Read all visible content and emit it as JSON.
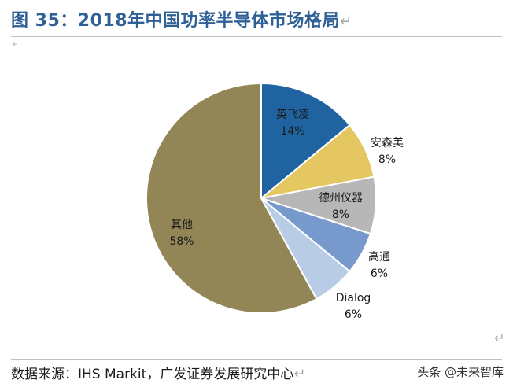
{
  "figure": {
    "title": "图 35：2018年中国功率半导体市场格局",
    "return_symbol": "↵",
    "source": "数据来源：IHS Markit，广发证券发展研究中心",
    "watermark": "头条 @未来智库"
  },
  "chart_data": {
    "type": "pie",
    "title": "",
    "start_angle_deg": 0,
    "direction": "clockwise",
    "slices": [
      {
        "name": "英飞凌",
        "value": 14,
        "label": "14%",
        "color": "#1f64a0"
      },
      {
        "name": "安森美",
        "value": 8,
        "label": "8%",
        "color": "#e5c761"
      },
      {
        "name": "德州仪器",
        "value": 8,
        "label": "8%",
        "color": "#b7b7b7"
      },
      {
        "name": "高通",
        "value": 6,
        "label": "6%",
        "color": "#7799cc"
      },
      {
        "name": "Dialog",
        "value": 6,
        "label": "6%",
        "color": "#b8cce6"
      },
      {
        "name": "其他",
        "value": 58,
        "label": "58%",
        "color": "#928556"
      }
    ]
  }
}
